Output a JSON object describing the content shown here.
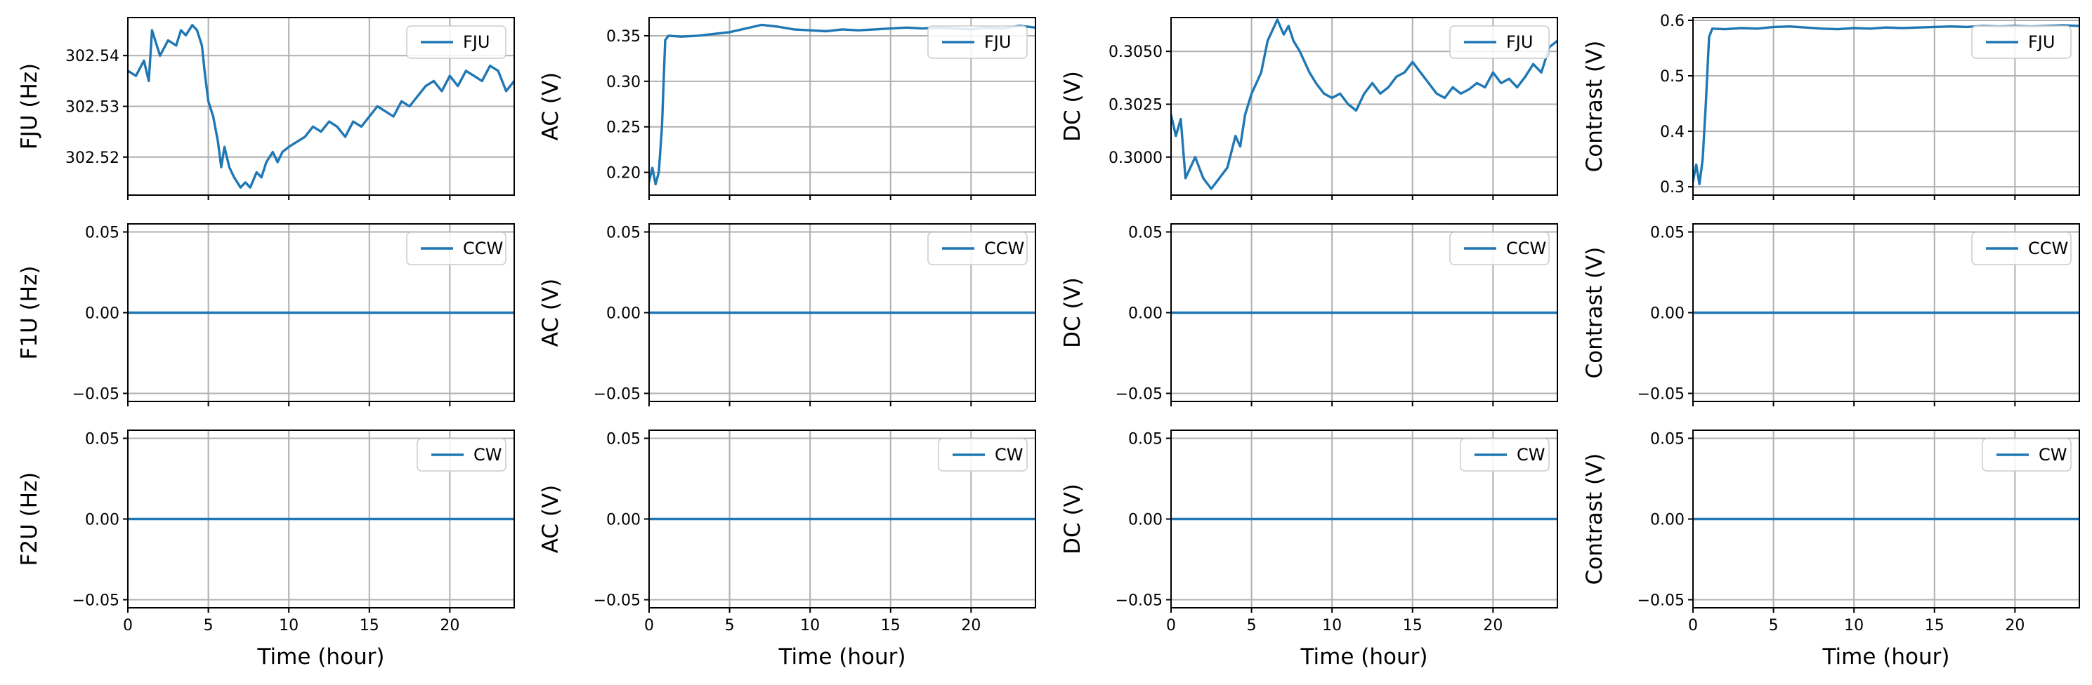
{
  "figure": {
    "line_color": "#1f77b4"
  },
  "chart_data": [
    {
      "type": "line",
      "row": 0,
      "col": 0,
      "xlabel": "",
      "ylabel": "FJU (Hz)",
      "xlim": [
        0,
        24
      ],
      "ylim": [
        302.5125,
        302.5475
      ],
      "xticks": [
        0,
        5,
        10,
        15,
        20
      ],
      "xtick_labels": [],
      "yticks": [
        302.52,
        302.53,
        302.54
      ],
      "ytick_labels": [
        "302.52",
        "302.53",
        "302.54"
      ],
      "grid": true,
      "legend": "upper right",
      "series": [
        {
          "name": "FJU",
          "x": [
            0,
            0.5,
            1,
            1.3,
            1.5,
            2,
            2.5,
            3,
            3.3,
            3.6,
            4,
            4.3,
            4.6,
            4.8,
            5,
            5.3,
            5.6,
            5.8,
            6,
            6.3,
            6.6,
            7,
            7.3,
            7.6,
            8,
            8.3,
            8.6,
            9,
            9.3,
            9.6,
            10,
            10.5,
            11,
            11.5,
            12,
            12.5,
            13,
            13.5,
            14,
            14.5,
            15,
            15.5,
            16,
            16.5,
            17,
            17.5,
            18,
            18.5,
            19,
            19.5,
            20,
            20.5,
            21,
            21.5,
            22,
            22.5,
            23,
            23.5,
            24
          ],
          "y": [
            302.537,
            302.536,
            302.539,
            302.535,
            302.545,
            302.54,
            302.543,
            302.542,
            302.545,
            302.544,
            302.546,
            302.545,
            302.542,
            302.536,
            302.531,
            302.528,
            302.523,
            302.518,
            302.522,
            302.518,
            302.516,
            302.514,
            302.515,
            302.514,
            302.517,
            302.516,
            302.519,
            302.521,
            302.519,
            302.521,
            302.522,
            302.523,
            302.524,
            302.526,
            302.525,
            302.527,
            302.526,
            302.524,
            302.527,
            302.526,
            302.528,
            302.53,
            302.529,
            302.528,
            302.531,
            302.53,
            302.532,
            302.534,
            302.535,
            302.533,
            302.536,
            302.534,
            302.537,
            302.536,
            302.535,
            302.538,
            302.537,
            302.533,
            302.535
          ]
        }
      ]
    },
    {
      "type": "line",
      "row": 0,
      "col": 1,
      "xlabel": "",
      "ylabel": "AC (V)",
      "xlim": [
        0,
        24
      ],
      "ylim": [
        0.175,
        0.37
      ],
      "xticks": [
        0,
        5,
        10,
        15,
        20
      ],
      "xtick_labels": [],
      "yticks": [
        0.2,
        0.25,
        0.3,
        0.35
      ],
      "ytick_labels": [
        "0.20",
        "0.25",
        "0.30",
        "0.35"
      ],
      "grid": true,
      "legend": "upper right",
      "series": [
        {
          "name": "FJU",
          "x": [
            0,
            0.2,
            0.4,
            0.6,
            0.8,
            1.0,
            1.2,
            2,
            3,
            4,
            5,
            6,
            7,
            8,
            9,
            10,
            11,
            12,
            13,
            14,
            15,
            16,
            17,
            18,
            19,
            20,
            21,
            22,
            23,
            24
          ],
          "y": [
            0.19,
            0.205,
            0.187,
            0.2,
            0.25,
            0.345,
            0.35,
            0.349,
            0.35,
            0.352,
            0.354,
            0.358,
            0.362,
            0.36,
            0.357,
            0.356,
            0.355,
            0.357,
            0.356,
            0.357,
            0.358,
            0.359,
            0.358,
            0.359,
            0.358,
            0.357,
            0.359,
            0.358,
            0.361,
            0.359
          ]
        }
      ]
    },
    {
      "type": "line",
      "row": 0,
      "col": 2,
      "xlabel": "",
      "ylabel": "DC (V)",
      "xlim": [
        0,
        24
      ],
      "ylim": [
        0.2982,
        0.3066
      ],
      "xticks": [
        0,
        5,
        10,
        15,
        20
      ],
      "xtick_labels": [],
      "yticks": [
        0.3,
        0.3025,
        0.305
      ],
      "ytick_labels": [
        "0.3000",
        "0.3025",
        "0.3050"
      ],
      "grid": true,
      "legend": "upper right",
      "series": [
        {
          "name": "FJU",
          "x": [
            0,
            0.3,
            0.6,
            0.9,
            1.2,
            1.5,
            2,
            2.5,
            3,
            3.5,
            4,
            4.3,
            4.6,
            5,
            5.3,
            5.6,
            6,
            6.3,
            6.6,
            7,
            7.3,
            7.6,
            8,
            8.3,
            8.6,
            9,
            9.5,
            10,
            10.5,
            11,
            11.5,
            12,
            12.5,
            13,
            13.5,
            14,
            14.5,
            15,
            15.5,
            16,
            16.5,
            17,
            17.5,
            18,
            18.5,
            19,
            19.5,
            20,
            20.5,
            21,
            21.5,
            22,
            22.5,
            23,
            23.5,
            24
          ],
          "y": [
            0.302,
            0.301,
            0.3018,
            0.299,
            0.2995,
            0.3,
            0.299,
            0.2985,
            0.299,
            0.2995,
            0.301,
            0.3005,
            0.302,
            0.303,
            0.3035,
            0.304,
            0.3055,
            0.306,
            0.3065,
            0.3058,
            0.3062,
            0.3055,
            0.305,
            0.3045,
            0.304,
            0.3035,
            0.303,
            0.3028,
            0.303,
            0.3025,
            0.3022,
            0.303,
            0.3035,
            0.303,
            0.3033,
            0.3038,
            0.304,
            0.3045,
            0.304,
            0.3035,
            0.303,
            0.3028,
            0.3033,
            0.303,
            0.3032,
            0.3035,
            0.3033,
            0.304,
            0.3035,
            0.3037,
            0.3033,
            0.3038,
            0.3044,
            0.304,
            0.3052,
            0.3055
          ]
        }
      ]
    },
    {
      "type": "line",
      "row": 0,
      "col": 3,
      "xlabel": "",
      "ylabel": "Contrast (V)",
      "xlim": [
        0,
        24
      ],
      "ylim": [
        0.285,
        0.605
      ],
      "xticks": [
        0,
        5,
        10,
        15,
        20
      ],
      "xtick_labels": [],
      "yticks": [
        0.3,
        0.4,
        0.5,
        0.6
      ],
      "ytick_labels": [
        "0.3",
        "0.4",
        "0.5",
        "0.6"
      ],
      "grid": true,
      "legend": "upper right",
      "series": [
        {
          "name": "FJU",
          "x": [
            0,
            0.2,
            0.4,
            0.6,
            0.8,
            1.0,
            1.2,
            2,
            3,
            4,
            5,
            6,
            7,
            8,
            9,
            10,
            11,
            12,
            13,
            14,
            15,
            16,
            17,
            18,
            19,
            20,
            21,
            22,
            23,
            24
          ],
          "y": [
            0.31,
            0.34,
            0.305,
            0.35,
            0.45,
            0.57,
            0.585,
            0.584,
            0.586,
            0.585,
            0.588,
            0.589,
            0.587,
            0.585,
            0.584,
            0.586,
            0.585,
            0.587,
            0.586,
            0.587,
            0.588,
            0.589,
            0.588,
            0.59,
            0.589,
            0.59,
            0.589,
            0.59,
            0.591,
            0.59
          ]
        }
      ]
    },
    {
      "type": "line",
      "row": 1,
      "col": 0,
      "xlabel": "",
      "ylabel": "F1U (Hz)",
      "xlim": [
        0,
        24
      ],
      "ylim": [
        -0.055,
        0.055
      ],
      "xticks": [
        0,
        5,
        10,
        15,
        20
      ],
      "xtick_labels": [],
      "yticks": [
        -0.05,
        0,
        0.05
      ],
      "ytick_labels": [
        "−0.05",
        "0.00",
        "0.05"
      ],
      "grid": true,
      "legend": "upper right",
      "series": [
        {
          "name": "CCW",
          "x": [
            0,
            24
          ],
          "y": [
            0,
            0
          ]
        }
      ]
    },
    {
      "type": "line",
      "row": 1,
      "col": 1,
      "xlabel": "",
      "ylabel": "AC (V)",
      "xlim": [
        0,
        24
      ],
      "ylim": [
        -0.055,
        0.055
      ],
      "xticks": [
        0,
        5,
        10,
        15,
        20
      ],
      "xtick_labels": [],
      "yticks": [
        -0.05,
        0,
        0.05
      ],
      "ytick_labels": [
        "−0.05",
        "0.00",
        "0.05"
      ],
      "grid": true,
      "legend": "upper right",
      "series": [
        {
          "name": "CCW",
          "x": [
            0,
            24
          ],
          "y": [
            0,
            0
          ]
        }
      ]
    },
    {
      "type": "line",
      "row": 1,
      "col": 2,
      "xlabel": "",
      "ylabel": "DC (V)",
      "xlim": [
        0,
        24
      ],
      "ylim": [
        -0.055,
        0.055
      ],
      "xticks": [
        0,
        5,
        10,
        15,
        20
      ],
      "xtick_labels": [],
      "yticks": [
        -0.05,
        0,
        0.05
      ],
      "ytick_labels": [
        "−0.05",
        "0.00",
        "0.05"
      ],
      "grid": true,
      "legend": "upper right",
      "series": [
        {
          "name": "CCW",
          "x": [
            0,
            24
          ],
          "y": [
            0,
            0
          ]
        }
      ]
    },
    {
      "type": "line",
      "row": 1,
      "col": 3,
      "xlabel": "",
      "ylabel": "Contrast (V)",
      "xlim": [
        0,
        24
      ],
      "ylim": [
        -0.055,
        0.055
      ],
      "xticks": [
        0,
        5,
        10,
        15,
        20
      ],
      "xtick_labels": [],
      "yticks": [
        -0.05,
        0,
        0.05
      ],
      "ytick_labels": [
        "−0.05",
        "0.00",
        "0.05"
      ],
      "grid": true,
      "legend": "upper right",
      "series": [
        {
          "name": "CCW",
          "x": [
            0,
            24
          ],
          "y": [
            0,
            0
          ]
        }
      ]
    },
    {
      "type": "line",
      "row": 2,
      "col": 0,
      "xlabel": "Time (hour)",
      "ylabel": "F2U (Hz)",
      "xlim": [
        0,
        24
      ],
      "ylim": [
        -0.055,
        0.055
      ],
      "xticks": [
        0,
        5,
        10,
        15,
        20
      ],
      "xtick_labels": [
        "0",
        "5",
        "10",
        "15",
        "20"
      ],
      "yticks": [
        -0.05,
        0,
        0.05
      ],
      "ytick_labels": [
        "−0.05",
        "0.00",
        "0.05"
      ],
      "grid": true,
      "legend": "upper right",
      "series": [
        {
          "name": "CW",
          "x": [
            0,
            24
          ],
          "y": [
            0,
            0
          ]
        }
      ]
    },
    {
      "type": "line",
      "row": 2,
      "col": 1,
      "xlabel": "Time (hour)",
      "ylabel": "AC (V)",
      "xlim": [
        0,
        24
      ],
      "ylim": [
        -0.055,
        0.055
      ],
      "xticks": [
        0,
        5,
        10,
        15,
        20
      ],
      "xtick_labels": [
        "0",
        "5",
        "10",
        "15",
        "20"
      ],
      "yticks": [
        -0.05,
        0,
        0.05
      ],
      "ytick_labels": [
        "−0.05",
        "0.00",
        "0.05"
      ],
      "grid": true,
      "legend": "upper right",
      "series": [
        {
          "name": "CW",
          "x": [
            0,
            24
          ],
          "y": [
            0,
            0
          ]
        }
      ]
    },
    {
      "type": "line",
      "row": 2,
      "col": 2,
      "xlabel": "Time (hour)",
      "ylabel": "DC (V)",
      "xlim": [
        0,
        24
      ],
      "ylim": [
        -0.055,
        0.055
      ],
      "xticks": [
        0,
        5,
        10,
        15,
        20
      ],
      "xtick_labels": [
        "0",
        "5",
        "10",
        "15",
        "20"
      ],
      "yticks": [
        -0.05,
        0,
        0.05
      ],
      "ytick_labels": [
        "−0.05",
        "0.00",
        "0.05"
      ],
      "grid": true,
      "legend": "upper right",
      "series": [
        {
          "name": "CW",
          "x": [
            0,
            24
          ],
          "y": [
            0,
            0
          ]
        }
      ]
    },
    {
      "type": "line",
      "row": 2,
      "col": 3,
      "xlabel": "Time (hour)",
      "ylabel": "Contrast (V)",
      "xlim": [
        0,
        24
      ],
      "ylim": [
        -0.055,
        0.055
      ],
      "xticks": [
        0,
        5,
        10,
        15,
        20
      ],
      "xtick_labels": [
        "0",
        "5",
        "10",
        "15",
        "20"
      ],
      "yticks": [
        -0.05,
        0,
        0.05
      ],
      "ytick_labels": [
        "−0.05",
        "0.00",
        "0.05"
      ],
      "grid": true,
      "legend": "upper right",
      "series": [
        {
          "name": "CW",
          "x": [
            0,
            24
          ],
          "y": [
            0,
            0
          ]
        }
      ]
    }
  ]
}
